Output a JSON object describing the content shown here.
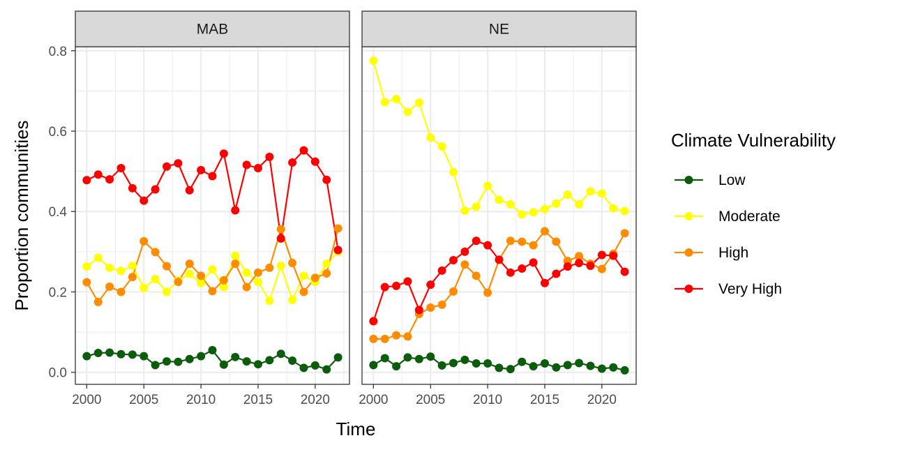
{
  "chart_data": {
    "type": "line",
    "xlabel": "Time",
    "ylabel": "Proportion communities",
    "xlim": [
      1999,
      2023
    ],
    "ylim": [
      -0.03,
      0.81
    ],
    "x_ticks": [
      2000,
      2005,
      2010,
      2015,
      2020
    ],
    "y_ticks": [
      0.0,
      0.2,
      0.4,
      0.6,
      0.8
    ],
    "x_tick_labels": [
      "2000",
      "2005",
      "2010",
      "2015",
      "2020"
    ],
    "y_tick_labels": [
      "0.0",
      "0.2",
      "0.4",
      "0.6",
      "0.8"
    ],
    "grid": true,
    "legend": {
      "title": "Climate Vulnerability",
      "placement": "right",
      "items": [
        {
          "label": "Low",
          "color": "#0b5c0b"
        },
        {
          "label": "Moderate",
          "color": "#ffff00"
        },
        {
          "label": "High",
          "color": "#ff8c00"
        },
        {
          "label": "Very High",
          "color": "#ff0000"
        }
      ]
    },
    "x": [
      2000,
      2001,
      2002,
      2003,
      2004,
      2005,
      2006,
      2007,
      2008,
      2009,
      2010,
      2011,
      2012,
      2013,
      2014,
      2015,
      2016,
      2017,
      2018,
      2019,
      2020,
      2021,
      2022
    ],
    "panels": [
      {
        "name": "MAB",
        "series": [
          {
            "name": "Low",
            "color": "#0b5c0b",
            "values": [
              0.04,
              0.048,
              0.049,
              0.045,
              0.044,
              0.04,
              0.018,
              0.027,
              0.026,
              0.033,
              0.04,
              0.055,
              0.019,
              0.038,
              0.027,
              0.02,
              0.03,
              0.046,
              0.029,
              0.011,
              0.017,
              0.007,
              0.037
            ]
          },
          {
            "name": "Moderate",
            "color": "#ffff00",
            "values": [
              0.263,
              0.285,
              0.26,
              0.252,
              0.265,
              0.21,
              0.232,
              0.2,
              0.228,
              0.245,
              0.222,
              0.256,
              0.212,
              0.29,
              0.248,
              0.225,
              0.178,
              0.265,
              0.18,
              0.24,
              0.225,
              0.27,
              0.3
            ]
          },
          {
            "name": "High",
            "color": "#ff8c00",
            "values": [
              0.224,
              0.175,
              0.213,
              0.2,
              0.237,
              0.326,
              0.299,
              0.264,
              0.225,
              0.27,
              0.24,
              0.202,
              0.229,
              0.27,
              0.212,
              0.248,
              0.26,
              0.356,
              0.272,
              0.2,
              0.235,
              0.246,
              0.358
            ]
          },
          {
            "name": "Very High",
            "color": "#ff0000",
            "values": [
              0.478,
              0.492,
              0.48,
              0.508,
              0.458,
              0.427,
              0.455,
              0.512,
              0.52,
              0.453,
              0.503,
              0.488,
              0.544,
              0.403,
              0.516,
              0.508,
              0.536,
              0.333,
              0.522,
              0.552,
              0.524,
              0.479,
              0.304
            ]
          }
        ]
      },
      {
        "name": "NE",
        "series": [
          {
            "name": "Low",
            "color": "#0b5c0b",
            "values": [
              0.018,
              0.035,
              0.015,
              0.037,
              0.033,
              0.039,
              0.017,
              0.023,
              0.031,
              0.022,
              0.022,
              0.011,
              0.008,
              0.026,
              0.015,
              0.022,
              0.012,
              0.018,
              0.023,
              0.016,
              0.009,
              0.012,
              0.005
            ]
          },
          {
            "name": "Moderate",
            "color": "#ffff00",
            "values": [
              0.775,
              0.672,
              0.68,
              0.648,
              0.671,
              0.584,
              0.562,
              0.498,
              0.402,
              0.412,
              0.464,
              0.429,
              0.418,
              0.393,
              0.398,
              0.406,
              0.42,
              0.442,
              0.418,
              0.45,
              0.445,
              0.408,
              0.401
            ]
          },
          {
            "name": "High",
            "color": "#ff8c00",
            "values": [
              0.083,
              0.083,
              0.092,
              0.089,
              0.145,
              0.161,
              0.168,
              0.201,
              0.268,
              0.24,
              0.198,
              0.28,
              0.327,
              0.325,
              0.316,
              0.351,
              0.325,
              0.277,
              0.289,
              0.27,
              0.257,
              0.295,
              0.346
            ]
          },
          {
            "name": "Very High",
            "color": "#ff0000",
            "values": [
              0.127,
              0.212,
              0.215,
              0.226,
              0.155,
              0.218,
              0.253,
              0.279,
              0.3,
              0.327,
              0.316,
              0.28,
              0.248,
              0.258,
              0.273,
              0.222,
              0.245,
              0.263,
              0.272,
              0.265,
              0.292,
              0.29,
              0.25
            ]
          }
        ]
      }
    ]
  }
}
